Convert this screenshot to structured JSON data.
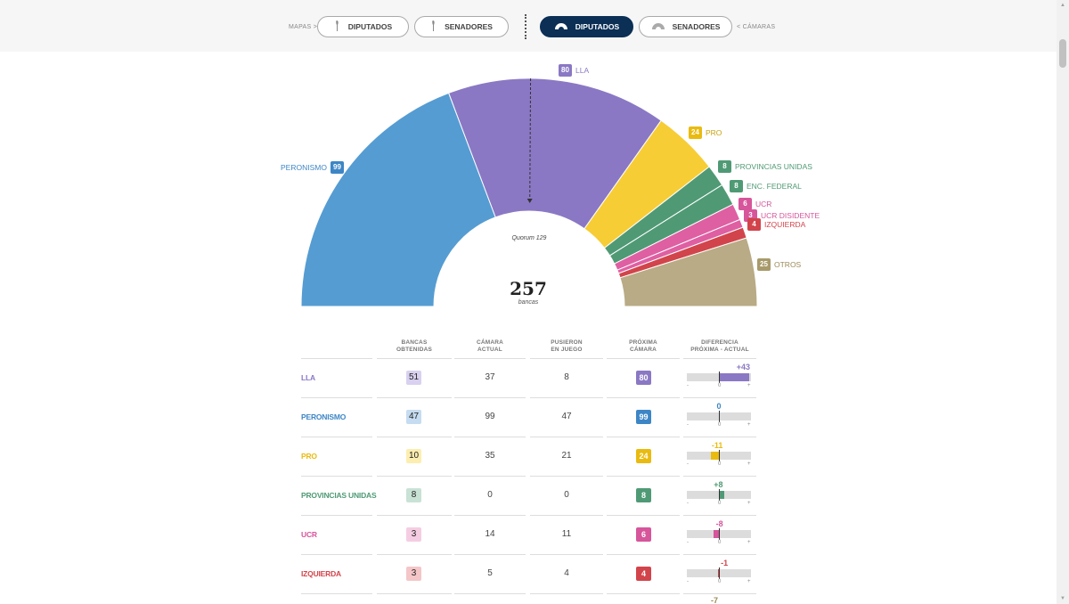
{
  "nav": {
    "maps_label": "MAPAS >",
    "chambers_label": "< CÁMARAS",
    "map_buttons": [
      "DIPUTADOS",
      "SENADORES"
    ],
    "chamber_buttons": [
      "DIPUTADOS",
      "SENADORES"
    ],
    "active_chamber": "DIPUTADOS"
  },
  "chart": {
    "total": "257",
    "total_label": "bancas",
    "quorum_label": "Quorum 129"
  },
  "chart_data": {
    "type": "pie",
    "subtype": "hemicycle",
    "total_seats": 257,
    "quorum": 129,
    "parties": [
      {
        "name": "PERONISMO",
        "seats": 99,
        "color": "#559cd2"
      },
      {
        "name": "LLA",
        "seats": 80,
        "color": "#8a78c4"
      },
      {
        "name": "PRO",
        "seats": 24,
        "color": "#f7cd35"
      },
      {
        "name": "PROVINCIAS UNIDAS",
        "seats": 8,
        "color": "#4f9a75"
      },
      {
        "name": "ENC. FEDERAL",
        "seats": 8,
        "color": "#4f9a75"
      },
      {
        "name": "UCR",
        "seats": 6,
        "color": "#df5fa3"
      },
      {
        "name": "UCR DISIDENTE",
        "seats": 3,
        "color": "#df5fa3"
      },
      {
        "name": "IZQUIERDA",
        "seats": 4,
        "color": "#d2444b"
      },
      {
        "name": "OTROS",
        "seats": 25,
        "color": "#b8ab85"
      }
    ]
  },
  "table": {
    "headers": {
      "party": "",
      "won": "BANCAS\nOBTENIDAS",
      "current": "CÁMARA\nACTUAL",
      "at_stake": "PUSIERON\nEN JUEGO",
      "next": "PRÓXIMA\nCÁMARA",
      "diff": "DIFERENCIA\nPRÓXIMA - ACTUAL"
    },
    "scale": {
      "minus": "-",
      "zero": "0",
      "plus": "+"
    },
    "rows": [
      {
        "name": "LLA",
        "won": "51",
        "current": "37",
        "at_stake": "8",
        "next": "80",
        "diff": "+43",
        "diff_value": 43,
        "color": "#8a78c4",
        "light": "#d9d1ef"
      },
      {
        "name": "PERONISMO",
        "won": "47",
        "current": "99",
        "at_stake": "47",
        "next": "99",
        "diff": "0",
        "diff_value": 0,
        "color": "#3d86c6",
        "light": "#c6dcf0"
      },
      {
        "name": "PRO",
        "won": "10",
        "current": "35",
        "at_stake": "21",
        "next": "24",
        "diff": "-11",
        "diff_value": -11,
        "color": "#e9bb10",
        "light": "#fbeeb0"
      },
      {
        "name": "PROVINCIAS UNIDAS",
        "won": "8",
        "current": "0",
        "at_stake": "0",
        "next": "8",
        "diff": "+8",
        "diff_value": 8,
        "color": "#4f9a75",
        "light": "#c9e2d6"
      },
      {
        "name": "UCR",
        "won": "3",
        "current": "14",
        "at_stake": "11",
        "next": "6",
        "diff": "-8",
        "diff_value": -8,
        "color": "#d6559b",
        "light": "#f5cde2"
      },
      {
        "name": "IZQUIERDA",
        "won": "3",
        "current": "5",
        "at_stake": "4",
        "next": "4",
        "diff": "-1",
        "diff_value": -1,
        "color": "#d2444b",
        "light": "#f4c6c8"
      }
    ],
    "next_row_diff": "-7"
  },
  "colors": {
    "nav_active": "#0b2f55",
    "quorum_line": "#333333"
  }
}
